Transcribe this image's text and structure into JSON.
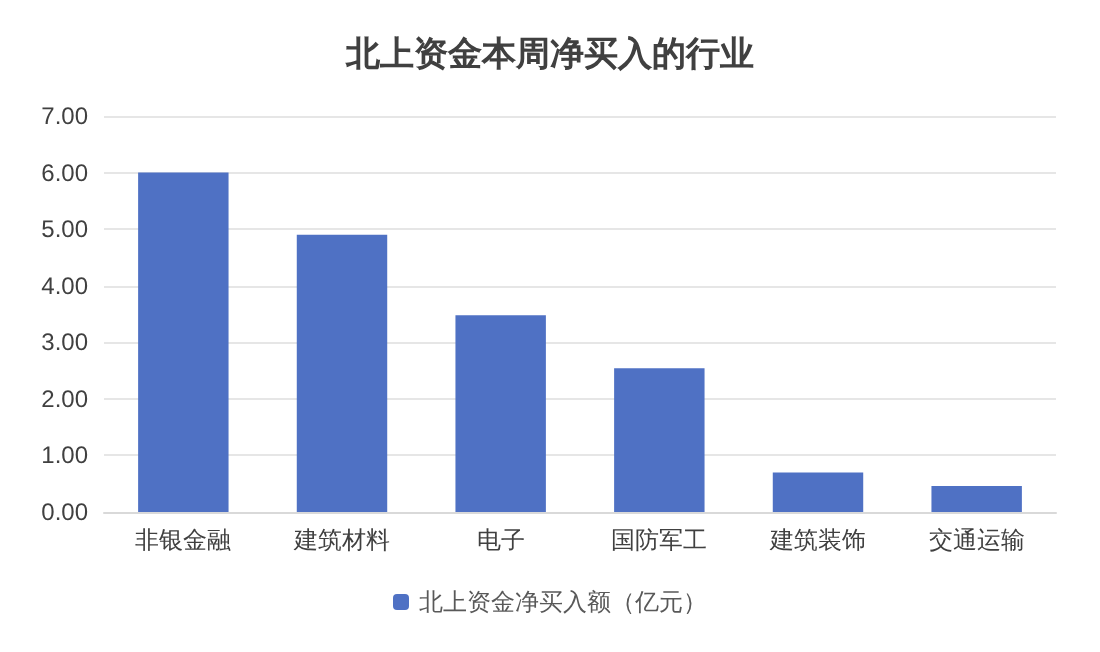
{
  "chart_data": {
    "type": "bar",
    "title": "北上资金本周净买入的行业",
    "categories": [
      "非银金融",
      "建筑材料",
      "电子",
      "国防军工",
      "建筑装饰",
      "交通运输"
    ],
    "series": [
      {
        "name": "北上资金净买入额（亿元）",
        "color": "#4f71c4",
        "values": [
          6.0,
          4.9,
          3.48,
          2.54,
          0.7,
          0.46
        ]
      }
    ],
    "ylim": [
      0,
      7
    ],
    "yticks": [
      {
        "value": 0,
        "label": "0.00"
      },
      {
        "value": 1,
        "label": "1.00"
      },
      {
        "value": 2,
        "label": "2.00"
      },
      {
        "value": 3,
        "label": "3.00"
      },
      {
        "value": 4,
        "label": "4.00"
      },
      {
        "value": 5,
        "label": "5.00"
      },
      {
        "value": 6,
        "label": "6.00"
      },
      {
        "value": 7,
        "label": "7.00"
      }
    ],
    "grid": "y",
    "legend": "bottom"
  }
}
